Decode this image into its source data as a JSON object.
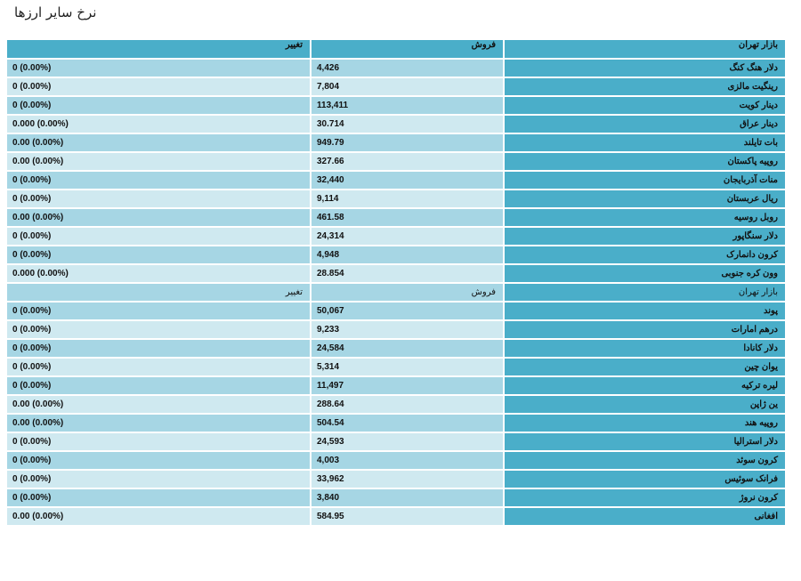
{
  "page_title": "نرخ سایر ارزها",
  "header": {
    "market": "بازار تهران",
    "sell": "فروش",
    "change": "تغییر"
  },
  "rows": [
    {
      "name": "دلار هنگ کنگ",
      "sell": "4,426",
      "change": "0 (0.00%)"
    },
    {
      "name": "رینگیت مالزی",
      "sell": "7,804",
      "change": "0 (0.00%)"
    },
    {
      "name": "دینار کویت",
      "sell": "113,411",
      "change": "0 (0.00%)"
    },
    {
      "name": "دینار عراق",
      "sell": "30.714",
      "change": "0.000 (0.00%)"
    },
    {
      "name": "بات تایلند",
      "sell": "949.79",
      "change": "0.00 (0.00%)"
    },
    {
      "name": "روپیه پاکستان",
      "sell": "327.66",
      "change": "0.00 (0.00%)"
    },
    {
      "name": "منات آذربایجان",
      "sell": "32,440",
      "change": "0 (0.00%)"
    },
    {
      "name": "ریال عربستان",
      "sell": "9,114",
      "change": "0 (0.00%)"
    },
    {
      "name": "روبل روسیه",
      "sell": "461.58",
      "change": "0.00 (0.00%)"
    },
    {
      "name": "دلار سنگاپور",
      "sell": "24,314",
      "change": "0 (0.00%)"
    },
    {
      "name": "کرون دانمارک",
      "sell": "4,948",
      "change": "0 (0.00%)"
    },
    {
      "name": "وون کره جنوبی",
      "sell": "28.854",
      "change": "0.000 (0.00%)"
    },
    {
      "subheader": true,
      "name": "بازار تهران",
      "sell": "فروش",
      "change": "تغییر"
    },
    {
      "name": "پوند",
      "sell": "50,067",
      "change": "0 (0.00%)"
    },
    {
      "name": "درهم امارات",
      "sell": "9,233",
      "change": "0 (0.00%)"
    },
    {
      "name": "دلار کانادا",
      "sell": "24,584",
      "change": "0 (0.00%)"
    },
    {
      "name": "یوان چین",
      "sell": "5,314",
      "change": "0 (0.00%)"
    },
    {
      "name": "لیره ترکیه",
      "sell": "11,497",
      "change": "0 (0.00%)"
    },
    {
      "name": "ین ژاپن",
      "sell": "288.64",
      "change": "0.00 (0.00%)"
    },
    {
      "name": "روپیه هند",
      "sell": "504.54",
      "change": "0.00 (0.00%)"
    },
    {
      "name": "دلار استرالیا",
      "sell": "24,593",
      "change": "0 (0.00%)"
    },
    {
      "name": "کرون سوئد",
      "sell": "4,003",
      "change": "0 (0.00%)"
    },
    {
      "name": "فرانک سوئیس",
      "sell": "33,962",
      "change": "0 (0.00%)"
    },
    {
      "name": "کرون نروژ",
      "sell": "3,840",
      "change": "0 (0.00%)"
    },
    {
      "name": "افغانی",
      "sell": "584.95",
      "change": "0.00 (0.00%)"
    }
  ],
  "colors": {
    "header_bg": "#4aaec9",
    "row_odd_bg": "#a6d6e4",
    "row_even_bg": "#cfe9f0"
  }
}
